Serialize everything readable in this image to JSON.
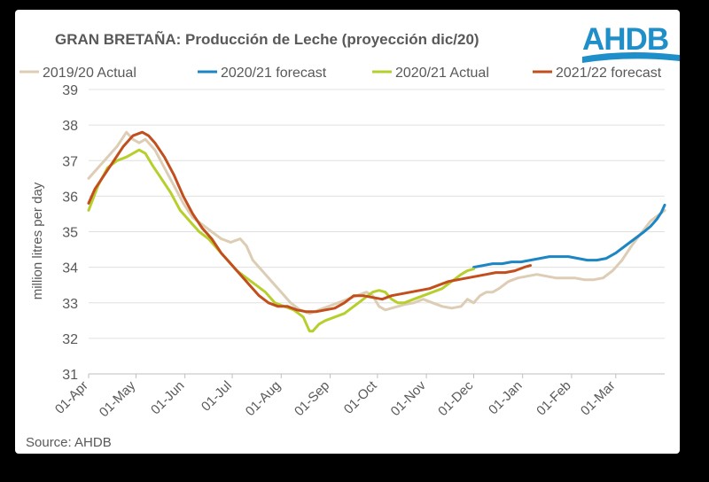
{
  "logo": {
    "text": "AHDB"
  },
  "source": "Source: AHDB",
  "colors": {
    "actual_1920": "#dccdb4",
    "forecast_2021": "#1c86c4",
    "actual_2021": "#b7cf2d",
    "forecast_2122": "#c24e1d",
    "grid": "#e0e0e0",
    "text": "#595959"
  },
  "chart_data": {
    "type": "line",
    "title": "GRAN BRETAÑA: Producción de Leche (proyección dic/20)",
    "ylabel": "million litres per day",
    "xlabel": "",
    "ylim": [
      31,
      39
    ],
    "yticks": [
      31,
      32,
      33,
      34,
      35,
      36,
      37,
      38,
      39
    ],
    "xlim": [
      0,
      365
    ],
    "xticks": [
      {
        "label": "01-Apr",
        "day": 0
      },
      {
        "label": "01-May",
        "day": 30
      },
      {
        "label": "01-Jun",
        "day": 61
      },
      {
        "label": "01-Jul",
        "day": 91
      },
      {
        "label": "01-Aug",
        "day": 122
      },
      {
        "label": "01-Sep",
        "day": 153
      },
      {
        "label": "01-Oct",
        "day": 183
      },
      {
        "label": "01-Nov",
        "day": 214
      },
      {
        "label": "01-Dec",
        "day": 244
      },
      {
        "label": "01-Jan",
        "day": 275
      },
      {
        "label": "01-Feb",
        "day": 306
      },
      {
        "label": "01-Mar",
        "day": 334
      }
    ],
    "grid": true,
    "legend": "top",
    "series": [
      {
        "name": "2019/20 Actual",
        "color": "#dccdb4",
        "x": [
          0,
          6,
          12,
          18,
          24,
          28,
          32,
          36,
          42,
          48,
          54,
          60,
          66,
          72,
          78,
          84,
          90,
          96,
          100,
          104,
          110,
          116,
          122,
          128,
          134,
          140,
          146,
          152,
          158,
          164,
          170,
          176,
          180,
          184,
          188,
          192,
          196,
          200,
          206,
          212,
          218,
          224,
          230,
          236,
          240,
          244,
          248,
          252,
          256,
          260,
          266,
          272,
          278,
          284,
          290,
          296,
          302,
          308,
          314,
          320,
          326,
          332,
          338,
          344,
          350,
          356,
          362,
          365
        ],
        "y": [
          36.5,
          36.8,
          37.1,
          37.4,
          37.8,
          37.6,
          37.5,
          37.6,
          37.3,
          36.8,
          36.3,
          35.8,
          35.4,
          35.2,
          35.0,
          34.8,
          34.7,
          34.8,
          34.6,
          34.2,
          33.9,
          33.6,
          33.3,
          33.0,
          32.8,
          32.7,
          32.8,
          32.9,
          33.0,
          33.1,
          33.2,
          33.3,
          33.2,
          32.9,
          32.8,
          32.85,
          32.9,
          32.95,
          33.0,
          33.1,
          33.0,
          32.9,
          32.85,
          32.9,
          33.1,
          33.0,
          33.2,
          33.3,
          33.3,
          33.4,
          33.6,
          33.7,
          33.75,
          33.8,
          33.75,
          33.7,
          33.7,
          33.7,
          33.65,
          33.65,
          33.7,
          33.9,
          34.2,
          34.6,
          34.95,
          35.3,
          35.5,
          35.6
        ]
      },
      {
        "name": "2020/21 forecast",
        "color": "#1c86c4",
        "x": [
          244,
          250,
          256,
          262,
          268,
          274,
          280,
          286,
          292,
          298,
          304,
          310,
          316,
          322,
          328,
          334,
          340,
          346,
          352,
          356,
          360,
          363,
          365
        ],
        "y": [
          34.0,
          34.05,
          34.1,
          34.1,
          34.15,
          34.15,
          34.2,
          34.25,
          34.3,
          34.3,
          34.3,
          34.25,
          34.2,
          34.2,
          34.25,
          34.4,
          34.6,
          34.8,
          35.0,
          35.15,
          35.35,
          35.55,
          35.75
        ]
      },
      {
        "name": "2020/21 Actual",
        "color": "#b7cf2d",
        "x": [
          0,
          6,
          12,
          18,
          24,
          28,
          32,
          36,
          40,
          46,
          52,
          58,
          64,
          70,
          76,
          82,
          88,
          94,
          100,
          106,
          112,
          118,
          124,
          130,
          136,
          140,
          142,
          146,
          150,
          156,
          162,
          168,
          174,
          180,
          184,
          188,
          192,
          196,
          200,
          206,
          212,
          218,
          224,
          230,
          236,
          240,
          244
        ],
        "y": [
          35.6,
          36.3,
          36.8,
          37.0,
          37.1,
          37.2,
          37.3,
          37.2,
          36.9,
          36.5,
          36.1,
          35.6,
          35.3,
          35.0,
          34.8,
          34.5,
          34.2,
          33.9,
          33.7,
          33.5,
          33.3,
          33.0,
          32.9,
          32.8,
          32.6,
          32.2,
          32.2,
          32.4,
          32.5,
          32.6,
          32.7,
          32.9,
          33.1,
          33.3,
          33.35,
          33.3,
          33.1,
          33.0,
          33.0,
          33.1,
          33.2,
          33.3,
          33.4,
          33.6,
          33.8,
          33.9,
          33.95
        ]
      },
      {
        "name": "2021/22 forecast",
        "color": "#c24e1d",
        "x": [
          0,
          4,
          10,
          16,
          22,
          28,
          34,
          38,
          42,
          48,
          54,
          60,
          66,
          72,
          78,
          84,
          90,
          96,
          102,
          108,
          114,
          120,
          126,
          132,
          138,
          144,
          150,
          156,
          162,
          168,
          174,
          180,
          186,
          192,
          198,
          204,
          210,
          216,
          222,
          228,
          234,
          240,
          246,
          252,
          258,
          264,
          270,
          276,
          280
        ],
        "y": [
          35.8,
          36.2,
          36.6,
          37.0,
          37.4,
          37.7,
          37.8,
          37.7,
          37.5,
          37.1,
          36.6,
          36.0,
          35.5,
          35.1,
          34.8,
          34.4,
          34.1,
          33.8,
          33.5,
          33.2,
          33.0,
          32.9,
          32.9,
          32.8,
          32.75,
          32.75,
          32.8,
          32.85,
          33.0,
          33.2,
          33.2,
          33.15,
          33.1,
          33.2,
          33.25,
          33.3,
          33.35,
          33.4,
          33.5,
          33.6,
          33.65,
          33.7,
          33.75,
          33.8,
          33.85,
          33.85,
          33.9,
          34.0,
          34.05
        ]
      }
    ]
  }
}
